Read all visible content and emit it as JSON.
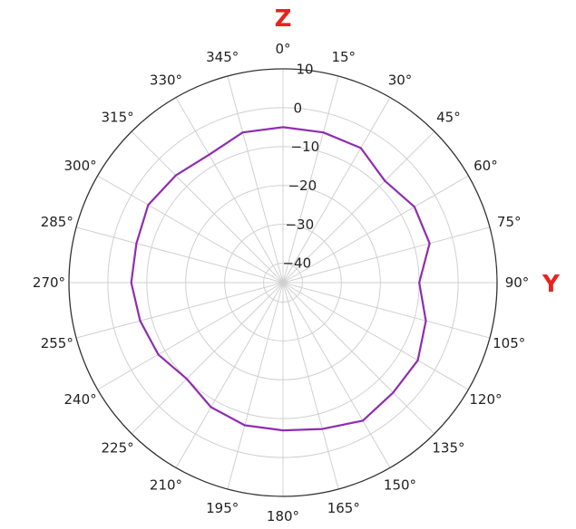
{
  "chart_data": {
    "type": "polar-line",
    "axis_names": {
      "top": "Z",
      "right": "Y"
    },
    "axis_name_color": "#e8231e",
    "theta_ticks": [
      {
        "deg": 0,
        "label": "0°"
      },
      {
        "deg": 15,
        "label": "15°"
      },
      {
        "deg": 30,
        "label": "30°"
      },
      {
        "deg": 45,
        "label": "45°"
      },
      {
        "deg": 60,
        "label": "60°"
      },
      {
        "deg": 75,
        "label": "75°"
      },
      {
        "deg": 90,
        "label": "90°"
      },
      {
        "deg": 105,
        "label": "105°"
      },
      {
        "deg": 120,
        "label": "120°"
      },
      {
        "deg": 135,
        "label": "135°"
      },
      {
        "deg": 150,
        "label": "150°"
      },
      {
        "deg": 165,
        "label": "165°"
      },
      {
        "deg": 180,
        "label": "180°"
      },
      {
        "deg": 195,
        "label": "195°"
      },
      {
        "deg": 210,
        "label": "210°"
      },
      {
        "deg": 225,
        "label": "225°"
      },
      {
        "deg": 240,
        "label": "240°"
      },
      {
        "deg": 255,
        "label": "255°"
      },
      {
        "deg": 270,
        "label": "270°"
      },
      {
        "deg": 285,
        "label": "285°"
      },
      {
        "deg": 300,
        "label": "300°"
      },
      {
        "deg": 315,
        "label": "315°"
      },
      {
        "deg": 330,
        "label": "330°"
      },
      {
        "deg": 345,
        "label": "345°"
      }
    ],
    "r_ticks": [
      {
        "value": -40,
        "label": "−40"
      },
      {
        "value": -30,
        "label": "−30"
      },
      {
        "value": -20,
        "label": "−20"
      },
      {
        "value": -10,
        "label": "−10"
      },
      {
        "value": 0,
        "label": "0"
      },
      {
        "value": 10,
        "label": "10"
      }
    ],
    "rlim": [
      -45,
      10
    ],
    "grid": true,
    "series": [
      {
        "color": "#8e2db0",
        "theta": [
          0,
          15,
          30,
          45,
          60,
          75,
          90,
          105,
          120,
          135,
          150,
          165,
          180,
          195,
          210,
          225,
          240,
          255,
          270,
          285,
          300,
          315,
          330,
          345
        ],
        "r": [
          -5,
          -5,
          -5,
          -8,
          -6,
          -6,
          -10,
          -7,
          -5,
          -5,
          -4,
          -6,
          -7,
          -7,
          -8,
          -10,
          -8,
          -7,
          -6,
          -6,
          -5,
          -6,
          -7,
          -5
        ]
      }
    ]
  }
}
